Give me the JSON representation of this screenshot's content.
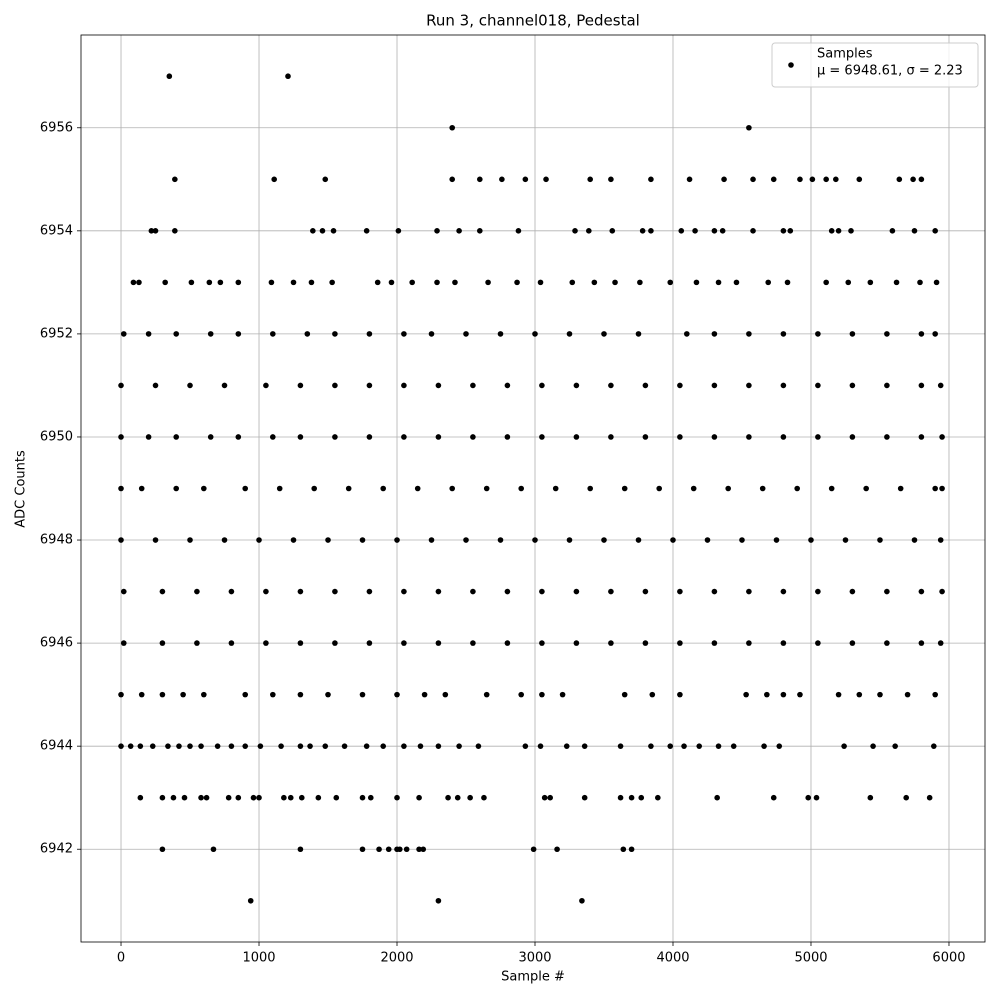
{
  "chart_data": {
    "type": "scatter",
    "title": "Run 3, channel018, Pedestal",
    "x_label": "Sample #",
    "y_label": "ADC Counts",
    "xlim": [
      -290,
      6261
    ],
    "ylim": [
      6940.2,
      6957.8
    ],
    "xticks": [
      0,
      1000,
      2000,
      3000,
      4000,
      5000,
      6000
    ],
    "yticks": [
      6942,
      6944,
      6946,
      6948,
      6950,
      6952,
      6954,
      6956
    ],
    "grid": true,
    "legend": "upper right",
    "stats_label": "μ = 6948.61, σ = 2.23",
    "series": [
      {
        "name": "Samples",
        "color": "#000000",
        "x": [
          350,
          1210,
          2400,
          4550,
          390,
          1110,
          1480,
          2400,
          2600,
          2760,
          2930,
          3080,
          3400,
          3550,
          3840,
          4120,
          4370,
          4580,
          4730,
          4920,
          5010,
          5110,
          5180,
          5350,
          5640,
          5740,
          5800,
          220,
          250,
          390,
          1390,
          1460,
          1540,
          1780,
          2010,
          2290,
          2450,
          2600,
          2880,
          3290,
          3390,
          3560,
          3780,
          3840,
          4060,
          4160,
          4300,
          4360,
          4580,
          4800,
          4850,
          5150,
          5200,
          5290,
          5590,
          5750,
          5900,
          90,
          130,
          320,
          510,
          640,
          720,
          850,
          1090,
          1250,
          1380,
          1530,
          1860,
          1960,
          2110,
          2290,
          2420,
          2660,
          2870,
          3040,
          3270,
          3430,
          3580,
          3760,
          3980,
          4170,
          4330,
          4460,
          4690,
          4830,
          5110,
          5270,
          5430,
          5620,
          5790,
          5910,
          20,
          200,
          400,
          650,
          850,
          1100,
          1350,
          1550,
          1800,
          2050,
          2250,
          2500,
          2750,
          3000,
          3250,
          3500,
          3750,
          4100,
          4300,
          4550,
          4800,
          5050,
          5300,
          5550,
          5800,
          5900,
          0,
          250,
          500,
          750,
          1050,
          1300,
          1550,
          1800,
          2050,
          2300,
          2550,
          2800,
          3050,
          3300,
          3550,
          3800,
          4050,
          4300,
          4550,
          4800,
          5050,
          5300,
          5550,
          5800,
          5940,
          0,
          200,
          400,
          650,
          850,
          1100,
          1300,
          1550,
          1800,
          2050,
          2300,
          2550,
          2800,
          3050,
          3300,
          3550,
          3800,
          4050,
          4300,
          4550,
          4800,
          5050,
          5300,
          5550,
          5800,
          5950,
          0,
          150,
          400,
          600,
          900,
          1150,
          1400,
          1650,
          1900,
          2150,
          2400,
          2650,
          2900,
          3150,
          3400,
          3650,
          3900,
          4150,
          4400,
          4650,
          4900,
          5150,
          5400,
          5650,
          5900,
          5950,
          0,
          250,
          500,
          750,
          1000,
          1250,
          1500,
          1750,
          2000,
          2250,
          2500,
          2750,
          3000,
          3250,
          3500,
          3750,
          4000,
          4250,
          4500,
          4750,
          5000,
          5250,
          5500,
          5750,
          5940,
          20,
          300,
          550,
          800,
          1050,
          1300,
          1550,
          1800,
          2050,
          2300,
          2550,
          2800,
          3050,
          3300,
          3550,
          3800,
          4050,
          4300,
          4550,
          4800,
          5050,
          5300,
          5550,
          5800,
          5950,
          20,
          300,
          550,
          800,
          1050,
          1300,
          1550,
          1800,
          2050,
          2300,
          2550,
          2800,
          3050,
          3300,
          3550,
          3800,
          4050,
          4300,
          4550,
          4800,
          5050,
          5300,
          5550,
          5800,
          5940,
          0,
          150,
          300,
          450,
          600,
          900,
          1100,
          1300,
          1500,
          1750,
          2000,
          2200,
          2350,
          2650,
          2900,
          3050,
          3200,
          3650,
          3850,
          4050,
          4530,
          4680,
          4800,
          4920,
          5200,
          5350,
          5500,
          5700,
          5900,
          0,
          70,
          140,
          230,
          340,
          420,
          500,
          580,
          700,
          800,
          900,
          1010,
          1160,
          1300,
          1370,
          1480,
          1620,
          1780,
          1900,
          2050,
          2170,
          2300,
          2450,
          2590,
          2930,
          3040,
          3230,
          3360,
          3620,
          3840,
          3980,
          4080,
          4190,
          4330,
          4440,
          4660,
          4770,
          5240,
          5450,
          5610,
          5890,
          140,
          300,
          380,
          460,
          580,
          620,
          780,
          850,
          960,
          1000,
          1180,
          1230,
          1310,
          1430,
          1560,
          1750,
          1810,
          2000,
          2160,
          2370,
          2440,
          2530,
          2630,
          3070,
          3110,
          3360,
          3620,
          3700,
          3770,
          3890,
          4320,
          4730,
          4980,
          5040,
          5430,
          5690,
          5860,
          300,
          670,
          1300,
          1750,
          1870,
          1940,
          2000,
          2020,
          2070,
          2160,
          2190,
          2990,
          3160,
          3640,
          3700,
          940,
          2300,
          3340
        ],
        "values": [
          6957,
          6957,
          6956,
          6956,
          6955,
          6955,
          6955,
          6955,
          6955,
          6955,
          6955,
          6955,
          6955,
          6955,
          6955,
          6955,
          6955,
          6955,
          6955,
          6955,
          6955,
          6955,
          6955,
          6955,
          6955,
          6955,
          6955,
          6954,
          6954,
          6954,
          6954,
          6954,
          6954,
          6954,
          6954,
          6954,
          6954,
          6954,
          6954,
          6954,
          6954,
          6954,
          6954,
          6954,
          6954,
          6954,
          6954,
          6954,
          6954,
          6954,
          6954,
          6954,
          6954,
          6954,
          6954,
          6954,
          6954,
          6953,
          6953,
          6953,
          6953,
          6953,
          6953,
          6953,
          6953,
          6953,
          6953,
          6953,
          6953,
          6953,
          6953,
          6953,
          6953,
          6953,
          6953,
          6953,
          6953,
          6953,
          6953,
          6953,
          6953,
          6953,
          6953,
          6953,
          6953,
          6953,
          6953,
          6953,
          6953,
          6953,
          6953,
          6953,
          6952,
          6952,
          6952,
          6952,
          6952,
          6952,
          6952,
          6952,
          6952,
          6952,
          6952,
          6952,
          6952,
          6952,
          6952,
          6952,
          6952,
          6952,
          6952,
          6952,
          6952,
          6952,
          6952,
          6952,
          6952,
          6952,
          6951,
          6951,
          6951,
          6951,
          6951,
          6951,
          6951,
          6951,
          6951,
          6951,
          6951,
          6951,
          6951,
          6951,
          6951,
          6951,
          6951,
          6951,
          6951,
          6951,
          6951,
          6951,
          6951,
          6951,
          6951,
          6950,
          6950,
          6950,
          6950,
          6950,
          6950,
          6950,
          6950,
          6950,
          6950,
          6950,
          6950,
          6950,
          6950,
          6950,
          6950,
          6950,
          6950,
          6950,
          6950,
          6950,
          6950,
          6950,
          6950,
          6950,
          6950,
          6949,
          6949,
          6949,
          6949,
          6949,
          6949,
          6949,
          6949,
          6949,
          6949,
          6949,
          6949,
          6949,
          6949,
          6949,
          6949,
          6949,
          6949,
          6949,
          6949,
          6949,
          6949,
          6949,
          6949,
          6949,
          6949,
          6948,
          6948,
          6948,
          6948,
          6948,
          6948,
          6948,
          6948,
          6948,
          6948,
          6948,
          6948,
          6948,
          6948,
          6948,
          6948,
          6948,
          6948,
          6948,
          6948,
          6948,
          6948,
          6948,
          6948,
          6948,
          6947,
          6947,
          6947,
          6947,
          6947,
          6947,
          6947,
          6947,
          6947,
          6947,
          6947,
          6947,
          6947,
          6947,
          6947,
          6947,
          6947,
          6947,
          6947,
          6947,
          6947,
          6947,
          6947,
          6947,
          6947,
          6946,
          6946,
          6946,
          6946,
          6946,
          6946,
          6946,
          6946,
          6946,
          6946,
          6946,
          6946,
          6946,
          6946,
          6946,
          6946,
          6946,
          6946,
          6946,
          6946,
          6946,
          6946,
          6946,
          6946,
          6946,
          6945,
          6945,
          6945,
          6945,
          6945,
          6945,
          6945,
          6945,
          6945,
          6945,
          6945,
          6945,
          6945,
          6945,
          6945,
          6945,
          6945,
          6945,
          6945,
          6945,
          6945,
          6945,
          6945,
          6945,
          6945,
          6945,
          6945,
          6945,
          6945,
          6944,
          6944,
          6944,
          6944,
          6944,
          6944,
          6944,
          6944,
          6944,
          6944,
          6944,
          6944,
          6944,
          6944,
          6944,
          6944,
          6944,
          6944,
          6944,
          6944,
          6944,
          6944,
          6944,
          6944,
          6944,
          6944,
          6944,
          6944,
          6944,
          6944,
          6944,
          6944,
          6944,
          6944,
          6944,
          6944,
          6944,
          6944,
          6944,
          6944,
          6944,
          6943,
          6943,
          6943,
          6943,
          6943,
          6943,
          6943,
          6943,
          6943,
          6943,
          6943,
          6943,
          6943,
          6943,
          6943,
          6943,
          6943,
          6943,
          6943,
          6943,
          6943,
          6943,
          6943,
          6943,
          6943,
          6943,
          6943,
          6943,
          6943,
          6943,
          6943,
          6943,
          6943,
          6943,
          6943,
          6943,
          6943,
          6942,
          6942,
          6942,
          6942,
          6942,
          6942,
          6942,
          6942,
          6942,
          6942,
          6942,
          6942,
          6942,
          6942,
          6942,
          6941,
          6941,
          6941
        ]
      }
    ]
  }
}
